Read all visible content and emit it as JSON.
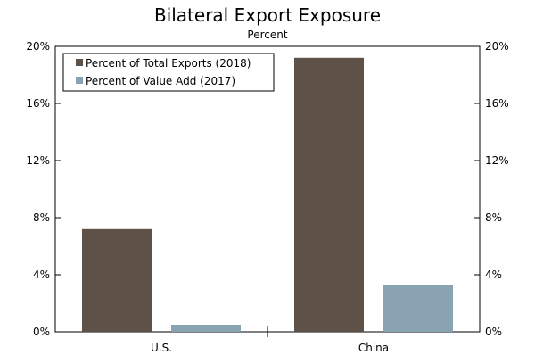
{
  "chart_data": {
    "type": "bar",
    "title": "Bilateral Export Exposure",
    "subtitle": "Percent",
    "categories": [
      "U.S.",
      "China"
    ],
    "series": [
      {
        "name": "Percent of Total Exports (2018)",
        "color": "#5e5248",
        "values": [
          7.2,
          19.2
        ]
      },
      {
        "name": "Percent of Value Add (2017)",
        "color": "#8aa3b2",
        "values": [
          0.5,
          3.3
        ]
      }
    ],
    "ylim": [
      0,
      20
    ],
    "yticks": [
      0,
      4,
      8,
      12,
      16,
      20
    ],
    "tick_labels": [
      "0%",
      "4%",
      "8%",
      "12%",
      "16%",
      "20%"
    ],
    "legend_position": "top-left",
    "dual_y_axis": true,
    "grid": false
  }
}
